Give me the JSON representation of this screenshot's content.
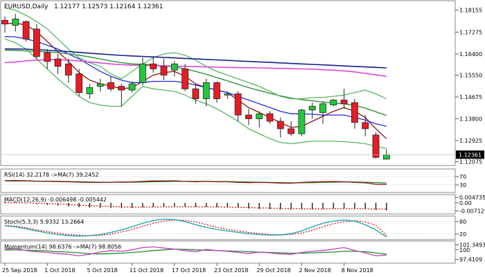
{
  "chart_data": {
    "type": "candlestick",
    "header": {
      "symbol_timeframe": "EURUSD,Daily",
      "ohlc": "1.12177 1.12573 1.12164 1.12361"
    },
    "last_price_label": "1.12361",
    "colors": {
      "bull": "#22c93a",
      "bear": "#e81c25",
      "wick": "#222222",
      "ma_red": "#8b1010",
      "ma_blue": "#1d2fd8",
      "ma_green": "#1f8a26",
      "ma_lightgreen": "#58b55f",
      "ma_pink": "#de45d8",
      "ma_navy": "#131d8b",
      "rsi": "#8b1010",
      "rsi_ma": "#1f8a26",
      "macd_hist": "#1a1a1a",
      "macd_signal": "#d01010",
      "stoch_main": "#17a0a8",
      "stoch_signal": "#d01010",
      "momentum": "#c040c0",
      "momentum_ma": "#1f8a26"
    },
    "price_axis": {
      "range": [
        1.1198,
        1.1848
      ],
      "ticks": [
        1.18155,
        1.17275,
        1.164,
        1.1555,
        1.14675,
        1.138,
        1.12925,
        1.12075
      ],
      "tick_labels": [
        "1.18155",
        "1.17275",
        "1.16400",
        "1.15550",
        "1.14675",
        "1.13800",
        "1.12925",
        "1.12075"
      ]
    },
    "x_axis": {
      "labels": [
        "25 Sep 2018",
        "1 Oct 2018",
        "5 Oct 2018",
        "11 Oct 2018",
        "17 Oct 2018",
        "23 Oct 2018",
        "29 Oct 2018",
        "2 Nov 2018",
        "8 Nov 2018"
      ],
      "label_bar_index": [
        0,
        4,
        8,
        12,
        16,
        20,
        24,
        28,
        32
      ]
    },
    "candles": [
      {
        "o": 1.1775,
        "h": 1.179,
        "l": 1.1725,
        "c": 1.176
      },
      {
        "o": 1.1755,
        "h": 1.18,
        "l": 1.173,
        "c": 1.178
      },
      {
        "o": 1.177,
        "h": 1.1775,
        "l": 1.169,
        "c": 1.17
      },
      {
        "o": 1.174,
        "h": 1.176,
        "l": 1.162,
        "c": 1.163
      },
      {
        "o": 1.1645,
        "h": 1.166,
        "l": 1.158,
        "c": 1.161
      },
      {
        "o": 1.162,
        "h": 1.164,
        "l": 1.156,
        "c": 1.159
      },
      {
        "o": 1.16,
        "h": 1.162,
        "l": 1.1525,
        "c": 1.1555
      },
      {
        "o": 1.156,
        "h": 1.158,
        "l": 1.147,
        "c": 1.1485
      },
      {
        "o": 1.148,
        "h": 1.152,
        "l": 1.146,
        "c": 1.1505
      },
      {
        "o": 1.151,
        "h": 1.154,
        "l": 1.149,
        "c": 1.152
      },
      {
        "o": 1.1525,
        "h": 1.155,
        "l": 1.149,
        "c": 1.15
      },
      {
        "o": 1.151,
        "h": 1.152,
        "l": 1.143,
        "c": 1.1495
      },
      {
        "o": 1.1495,
        "h": 1.153,
        "l": 1.1485,
        "c": 1.152
      },
      {
        "o": 1.1525,
        "h": 1.1625,
        "l": 1.1515,
        "c": 1.16
      },
      {
        "o": 1.16,
        "h": 1.1625,
        "l": 1.1565,
        "c": 1.158
      },
      {
        "o": 1.159,
        "h": 1.162,
        "l": 1.1535,
        "c": 1.1555
      },
      {
        "o": 1.1575,
        "h": 1.161,
        "l": 1.155,
        "c": 1.16
      },
      {
        "o": 1.158,
        "h": 1.16,
        "l": 1.149,
        "c": 1.15
      },
      {
        "o": 1.15,
        "h": 1.152,
        "l": 1.144,
        "c": 1.146
      },
      {
        "o": 1.146,
        "h": 1.154,
        "l": 1.143,
        "c": 1.1525
      },
      {
        "o": 1.1525,
        "h": 1.153,
        "l": 1.1445,
        "c": 1.146
      },
      {
        "o": 1.1475,
        "h": 1.149,
        "l": 1.146,
        "c": 1.148
      },
      {
        "o": 1.148,
        "h": 1.149,
        "l": 1.137,
        "c": 1.1395
      },
      {
        "o": 1.1395,
        "h": 1.142,
        "l": 1.1355,
        "c": 1.138
      },
      {
        "o": 1.138,
        "h": 1.141,
        "l": 1.1345,
        "c": 1.14
      },
      {
        "o": 1.14,
        "h": 1.141,
        "l": 1.136,
        "c": 1.137
      },
      {
        "o": 1.137,
        "h": 1.1385,
        "l": 1.1305,
        "c": 1.134
      },
      {
        "o": 1.134,
        "h": 1.137,
        "l": 1.131,
        "c": 1.132
      },
      {
        "o": 1.132,
        "h": 1.142,
        "l": 1.131,
        "c": 1.1415
      },
      {
        "o": 1.1415,
        "h": 1.1445,
        "l": 1.138,
        "c": 1.143
      },
      {
        "o": 1.1405,
        "h": 1.145,
        "l": 1.136,
        "c": 1.144
      },
      {
        "o": 1.1435,
        "h": 1.146,
        "l": 1.143,
        "c": 1.1455
      },
      {
        "o": 1.1455,
        "h": 1.15,
        "l": 1.142,
        "c": 1.144
      },
      {
        "o": 1.1445,
        "h": 1.146,
        "l": 1.134,
        "c": 1.1365
      },
      {
        "o": 1.1365,
        "h": 1.1395,
        "l": 1.131,
        "c": 1.134
      },
      {
        "o": 1.1315,
        "h": 1.1325,
        "l": 1.122,
        "c": 1.1225
      },
      {
        "o": 1.1218,
        "h": 1.1257,
        "l": 1.1216,
        "c": 1.1236
      }
    ],
    "overlays": [
      {
        "key": "ma_red",
        "values": [
          1.176,
          1.1765,
          1.1755,
          1.173,
          1.169,
          1.165,
          1.161,
          1.1565,
          1.1535,
          1.152,
          1.1512,
          1.15,
          1.1505,
          1.153,
          1.1555,
          1.1565,
          1.157,
          1.155,
          1.152,
          1.1505,
          1.1495,
          1.1485,
          1.1455,
          1.1425,
          1.1405,
          1.1385,
          1.1365,
          1.1345,
          1.135,
          1.137,
          1.139,
          1.141,
          1.1425,
          1.141,
          1.1385,
          1.134,
          1.13
        ]
      },
      {
        "key": "ma_blue",
        "values": [
          1.171,
          1.1708,
          1.17,
          1.169,
          1.1675,
          1.166,
          1.164,
          1.162,
          1.1595,
          1.157,
          1.155,
          1.1535,
          1.1525,
          1.1525,
          1.153,
          1.153,
          1.153,
          1.1525,
          1.1515,
          1.1505,
          1.1495,
          1.1485,
          1.147,
          1.1455,
          1.144,
          1.1425,
          1.141,
          1.14,
          1.14,
          1.1398,
          1.1395,
          1.1395,
          1.1395,
          1.1385,
          1.1375,
          1.136,
          1.135
        ]
      },
      {
        "key": "ma_green",
        "values": [
          1.1655,
          1.1654,
          1.1652,
          1.165,
          1.1648,
          1.1645,
          1.164,
          1.1635,
          1.1628,
          1.162,
          1.1612,
          1.1605,
          1.16,
          1.1598,
          1.1596,
          1.1592,
          1.1588,
          1.158,
          1.157,
          1.1558,
          1.1545,
          1.1532,
          1.1518,
          1.1505,
          1.1493,
          1.1482,
          1.1472,
          1.1463,
          1.1457,
          1.1452,
          1.1447,
          1.1443,
          1.144,
          1.1433,
          1.1423,
          1.1408,
          1.1393
        ]
      },
      {
        "key": "ma_lightgreen",
        "values": [
          1.1825,
          1.1815,
          1.1795,
          1.177,
          1.174,
          1.17,
          1.166,
          1.1625,
          1.1605,
          1.159,
          1.156,
          1.154,
          1.157,
          1.16,
          1.1625,
          1.164,
          1.1645,
          1.1635,
          1.1615,
          1.159,
          1.157,
          1.1555,
          1.154,
          1.1525,
          1.151,
          1.149,
          1.147,
          1.146,
          1.146,
          1.1465,
          1.1465,
          1.147,
          1.1475,
          1.1485,
          1.1495,
          1.148,
          1.146
        ]
      },
      {
        "key": "ma_lightgreen",
        "values": [
          1.17,
          1.1685,
          1.166,
          1.162,
          1.158,
          1.154,
          1.1505,
          1.147,
          1.1445,
          1.1435,
          1.143,
          1.143,
          1.147,
          1.151,
          1.15,
          1.1495,
          1.149,
          1.1475,
          1.1455,
          1.144,
          1.142,
          1.1395,
          1.137,
          1.134,
          1.132,
          1.13,
          1.1285,
          1.128,
          1.1285,
          1.129,
          1.129,
          1.129,
          1.1288,
          1.1285,
          1.128,
          1.127,
          1.126
        ]
      },
      {
        "key": "ma_pink",
        "values": [
          1.1605,
          1.1608,
          1.1612,
          1.1615,
          1.1617,
          1.1617,
          1.1615,
          1.1612,
          1.1608,
          1.1604,
          1.16,
          1.1597,
          1.1595,
          1.1594,
          1.1593,
          1.1592,
          1.1591,
          1.159,
          1.1589,
          1.1588,
          1.1587,
          1.1586,
          1.1585,
          1.1585,
          1.1584,
          1.1583,
          1.1582,
          1.1581,
          1.158,
          1.1579,
          1.1577,
          1.1575,
          1.1572,
          1.1568,
          1.1562,
          1.1556,
          1.155
        ]
      },
      {
        "key": "ma_navy",
        "values": [
          1.166,
          1.166,
          1.1659,
          1.1657,
          1.1655,
          1.1652,
          1.1649,
          1.1646,
          1.1643,
          1.164,
          1.1637,
          1.1634,
          1.1632,
          1.163,
          1.1628,
          1.1626,
          1.1624,
          1.1622,
          1.162,
          1.1618,
          1.1616,
          1.1614,
          1.1612,
          1.161,
          1.1608,
          1.1606,
          1.1604,
          1.1602,
          1.16,
          1.1598,
          1.1596,
          1.1594,
          1.1592,
          1.159,
          1.1588,
          1.1586,
          1.1584
        ]
      }
    ],
    "rsi": {
      "label": "RSI(14) 32.2178  ->MA(7) 39.2452",
      "ticks": [
        70,
        30
      ],
      "tick_labels": [
        "70",
        "30"
      ],
      "range": [
        0,
        100
      ],
      "values": [
        50,
        51,
        50,
        48,
        47,
        46,
        45,
        43,
        42,
        42,
        43,
        44,
        44,
        47,
        49,
        49,
        50,
        47,
        45,
        47,
        45,
        45,
        42,
        41,
        42,
        41,
        39,
        38,
        42,
        44,
        45,
        46,
        45,
        42,
        40,
        33,
        32
      ],
      "ma_values": [
        49,
        49,
        49,
        48,
        48,
        47,
        46,
        45,
        44,
        43,
        43,
        43,
        43,
        44,
        45,
        46,
        47,
        47,
        47,
        47,
        46,
        46,
        45,
        44,
        43,
        42,
        41,
        40,
        40,
        41,
        42,
        43,
        44,
        44,
        43,
        41,
        39
      ]
    },
    "macd": {
      "label": "MACD(12,26,9) -0.006498 -0.005442",
      "ticks": [
        0.004735,
        0.0,
        -0.007123
      ],
      "tick_labels": [
        "0.004735",
        "0.00",
        "-0.007123"
      ],
      "range": [
        -0.0085,
        0.006
      ],
      "hist": [
        0.001,
        0.0005,
        -0.0003,
        -0.001,
        -0.0018,
        -0.0024,
        -0.003,
        -0.0038,
        -0.0042,
        -0.0044,
        -0.0045,
        -0.0046,
        -0.0044,
        -0.0038,
        -0.0034,
        -0.0031,
        -0.0029,
        -0.0032,
        -0.0036,
        -0.0036,
        -0.0039,
        -0.004,
        -0.0045,
        -0.005,
        -0.0053,
        -0.0055,
        -0.0058,
        -0.006,
        -0.0057,
        -0.0054,
        -0.0052,
        -0.005,
        -0.0049,
        -0.0052,
        -0.0055,
        -0.0062,
        -0.0065
      ],
      "signal": [
        0.0002,
        0.0001,
        0.0,
        -0.0003,
        -0.0006,
        -0.001,
        -0.0014,
        -0.0019,
        -0.0024,
        -0.0028,
        -0.0032,
        -0.0035,
        -0.0037,
        -0.0037,
        -0.0036,
        -0.0035,
        -0.0034,
        -0.0034,
        -0.0034,
        -0.0035,
        -0.0036,
        -0.0037,
        -0.0039,
        -0.0041,
        -0.0044,
        -0.0046,
        -0.0048,
        -0.0051,
        -0.0052,
        -0.0053,
        -0.0053,
        -0.0052,
        -0.0052,
        -0.0052,
        -0.0052,
        -0.0054,
        -0.0054
      ]
    },
    "stoch": {
      "label": "Stoch(5,3,3) 5.9332 13.2664",
      "ticks": [
        80,
        20
      ],
      "tick_labels": [
        "80",
        "20"
      ],
      "range": [
        0,
        100
      ],
      "main": [
        60,
        55,
        45,
        35,
        25,
        18,
        12,
        10,
        12,
        18,
        28,
        40,
        55,
        72,
        85,
        92,
        90,
        80,
        65,
        52,
        42,
        35,
        28,
        22,
        18,
        15,
        16,
        22,
        35,
        55,
        72,
        82,
        88,
        82,
        65,
        40,
        6
      ],
      "signal": [
        62,
        58,
        50,
        40,
        32,
        25,
        18,
        14,
        12,
        14,
        20,
        30,
        42,
        58,
        72,
        83,
        88,
        86,
        78,
        66,
        53,
        43,
        35,
        28,
        22,
        18,
        16,
        18,
        25,
        38,
        55,
        70,
        80,
        84,
        78,
        62,
        13
      ]
    },
    "momentum": {
      "label": "Momentum(14) 98.6376  ->MA(7) 98.8056",
      "ticks": [
        101.3493,
        100,
        97.4109
      ],
      "tick_labels": [
        "101.3493",
        "100",
        "97.4109"
      ],
      "range": [
        96.8,
        102.0
      ],
      "values": [
        100.2,
        100.4,
        99.8,
        99.5,
        99.3,
        99.0,
        98.8,
        98.4,
        98.8,
        99.4,
        99.8,
        99.6,
        100.0,
        100.6,
        100.8,
        100.5,
        100.2,
        99.8,
        99.5,
        100.1,
        99.8,
        99.6,
        99.3,
        99.0,
        99.4,
        99.2,
        98.9,
        98.8,
        99.3,
        99.6,
        99.8,
        100.2,
        100.6,
        99.8,
        99.2,
        98.4,
        98.6
      ],
      "ma_values": [
        100.0,
        100.0,
        99.9,
        99.8,
        99.7,
        99.5,
        99.4,
        99.2,
        99.0,
        98.9,
        99.0,
        99.1,
        99.3,
        99.5,
        99.8,
        100.0,
        100.2,
        100.1,
        100.0,
        99.9,
        99.8,
        99.7,
        99.6,
        99.5,
        99.4,
        99.3,
        99.2,
        99.1,
        99.1,
        99.2,
        99.3,
        99.4,
        99.6,
        99.6,
        99.5,
        99.2,
        98.8
      ]
    }
  }
}
